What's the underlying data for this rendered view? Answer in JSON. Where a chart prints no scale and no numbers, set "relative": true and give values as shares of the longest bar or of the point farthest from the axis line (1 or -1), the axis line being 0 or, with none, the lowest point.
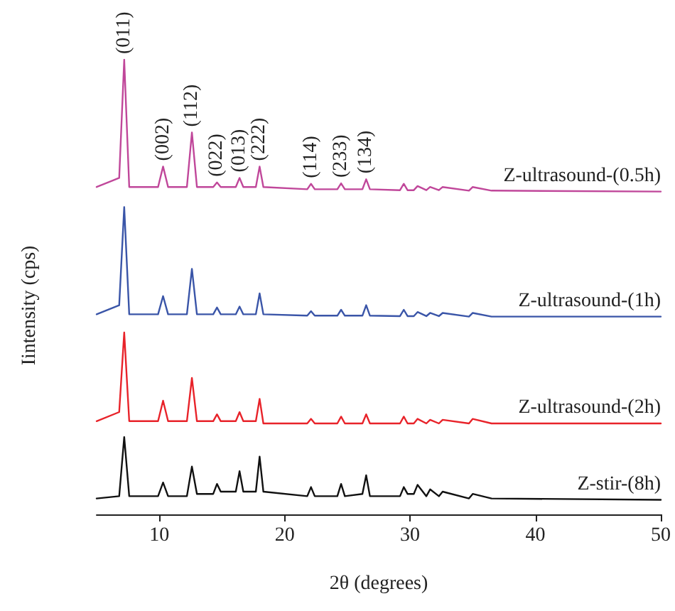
{
  "chart_data": {
    "type": "line",
    "relative": true,
    "xlabel": "2θ (degrees)",
    "ylabel": "Iintensity (cps)",
    "xlim": [
      5,
      50
    ],
    "xticks": [
      10,
      20,
      30,
      40,
      50
    ],
    "marker": "none",
    "x": [
      5,
      6.8,
      7.2,
      7.6,
      9.9,
      10.3,
      10.7,
      12.2,
      12.6,
      13,
      14.3,
      14.6,
      14.9,
      16.1,
      16.4,
      16.7,
      17.7,
      18,
      18.3,
      21.8,
      22.1,
      22.4,
      24.2,
      24.5,
      24.8,
      26.2,
      26.5,
      26.8,
      29.2,
      29.5,
      29.8,
      30.3,
      30.6,
      31.3,
      31.6,
      32.3,
      32.6,
      34.7,
      35,
      36.5,
      50
    ],
    "series": [
      {
        "name": "Z-ultrasound-(0.5h)",
        "color": "#c0479a",
        "values": [
          0.72,
          0.74,
          1.0,
          0.72,
          0.72,
          0.765,
          0.72,
          0.72,
          0.84,
          0.72,
          0.72,
          0.73,
          0.72,
          0.72,
          0.74,
          0.72,
          0.72,
          0.765,
          0.72,
          0.715,
          0.727,
          0.715,
          0.715,
          0.728,
          0.715,
          0.715,
          0.737,
          0.715,
          0.713,
          0.727,
          0.713,
          0.713,
          0.722,
          0.713,
          0.72,
          0.713,
          0.72,
          0.712,
          0.72,
          0.712,
          0.71
        ]
      },
      {
        "name": "Z-ultrasound-(1h)",
        "color": "#3a55a8",
        "values": [
          0.44,
          0.46,
          0.676,
          0.44,
          0.44,
          0.48,
          0.44,
          0.44,
          0.54,
          0.44,
          0.44,
          0.455,
          0.44,
          0.44,
          0.457,
          0.44,
          0.44,
          0.486,
          0.44,
          0.437,
          0.447,
          0.437,
          0.437,
          0.45,
          0.437,
          0.437,
          0.46,
          0.437,
          0.436,
          0.45,
          0.436,
          0.436,
          0.445,
          0.436,
          0.443,
          0.436,
          0.443,
          0.435,
          0.443,
          0.435,
          0.435
        ]
      },
      {
        "name": "Z-ultrasound-(2h)",
        "color": "#e8232a",
        "values": [
          0.205,
          0.225,
          0.4,
          0.205,
          0.205,
          0.25,
          0.205,
          0.205,
          0.3,
          0.205,
          0.205,
          0.22,
          0.205,
          0.205,
          0.225,
          0.205,
          0.205,
          0.254,
          0.2,
          0.2,
          0.21,
          0.2,
          0.2,
          0.215,
          0.2,
          0.2,
          0.22,
          0.2,
          0.2,
          0.215,
          0.2,
          0.2,
          0.21,
          0.2,
          0.208,
          0.2,
          0.208,
          0.2,
          0.21,
          0.2,
          0.2
        ]
      },
      {
        "name": "Z-stir-(8h)",
        "color": "#111111",
        "values": [
          0.035,
          0.04,
          0.17,
          0.04,
          0.04,
          0.07,
          0.04,
          0.04,
          0.105,
          0.045,
          0.045,
          0.067,
          0.05,
          0.05,
          0.095,
          0.05,
          0.05,
          0.127,
          0.05,
          0.04,
          0.06,
          0.04,
          0.04,
          0.067,
          0.04,
          0.045,
          0.086,
          0.04,
          0.04,
          0.06,
          0.045,
          0.045,
          0.065,
          0.04,
          0.055,
          0.04,
          0.05,
          0.035,
          0.045,
          0.035,
          0.032
        ]
      }
    ],
    "annotations": [
      {
        "text": "(011)",
        "x": 7.2,
        "y": 1.0
      },
      {
        "text": "(002)",
        "x": 10.3,
        "y": 0.765
      },
      {
        "text": "(112)",
        "x": 12.6,
        "y": 0.84
      },
      {
        "text": "(022)",
        "x": 14.6,
        "y": 0.73
      },
      {
        "text": "(013)",
        "x": 16.4,
        "y": 0.74
      },
      {
        "text": "(222)",
        "x": 18,
        "y": 0.765
      },
      {
        "text": "(114)",
        "x": 22.1,
        "y": 0.727
      },
      {
        "text": "(233)",
        "x": 24.5,
        "y": 0.728
      },
      {
        "text": "(134)",
        "x": 26.5,
        "y": 0.737
      }
    ]
  }
}
